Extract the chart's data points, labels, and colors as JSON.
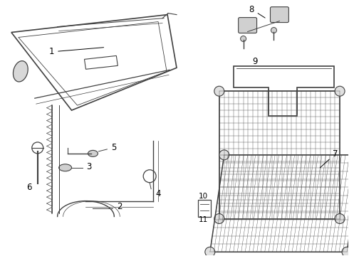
{
  "bg_color": "#ffffff",
  "line_color": "#404040",
  "label_color": "#000000",
  "figsize": [
    4.9,
    3.6
  ],
  "dpi": 100,
  "label_fontsize": 8.5
}
